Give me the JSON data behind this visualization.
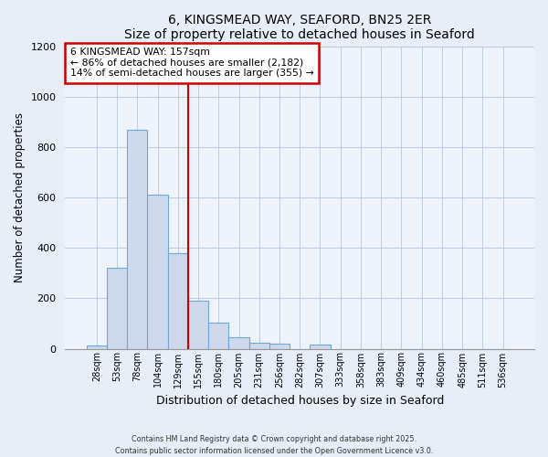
{
  "title": "6, KINGSMEAD WAY, SEAFORD, BN25 2ER",
  "subtitle": "Size of property relative to detached houses in Seaford",
  "xlabel": "Distribution of detached houses by size in Seaford",
  "ylabel": "Number of detached properties",
  "bar_labels": [
    "28sqm",
    "53sqm",
    "78sqm",
    "104sqm",
    "129sqm",
    "155sqm",
    "180sqm",
    "205sqm",
    "231sqm",
    "256sqm",
    "282sqm",
    "307sqm",
    "333sqm",
    "358sqm",
    "383sqm",
    "409sqm",
    "434sqm",
    "460sqm",
    "485sqm",
    "511sqm",
    "536sqm"
  ],
  "bar_values": [
    12,
    320,
    870,
    610,
    380,
    190,
    105,
    47,
    25,
    20,
    0,
    15,
    0,
    0,
    0,
    0,
    0,
    0,
    0,
    0,
    0
  ],
  "bar_color": "#cdd9ea",
  "bar_edge_color": "#6fa8d4",
  "vline_color": "#cc0000",
  "annotation_title": "6 KINGSMEAD WAY: 157sqm",
  "annotation_line1": "← 86% of detached houses are smaller (2,182)",
  "annotation_line2": "14% of semi-detached houses are larger (355) →",
  "annotation_box_color": "#cc0000",
  "ylim": [
    0,
    1200
  ],
  "yticks": [
    0,
    200,
    400,
    600,
    800,
    1000,
    1200
  ],
  "footer1": "Contains HM Land Registry data © Crown copyright and database right 2025.",
  "footer2": "Contains public sector information licensed under the Open Government Licence v3.0.",
  "background_color": "#e8eef8",
  "plot_background": "#eef2fa"
}
